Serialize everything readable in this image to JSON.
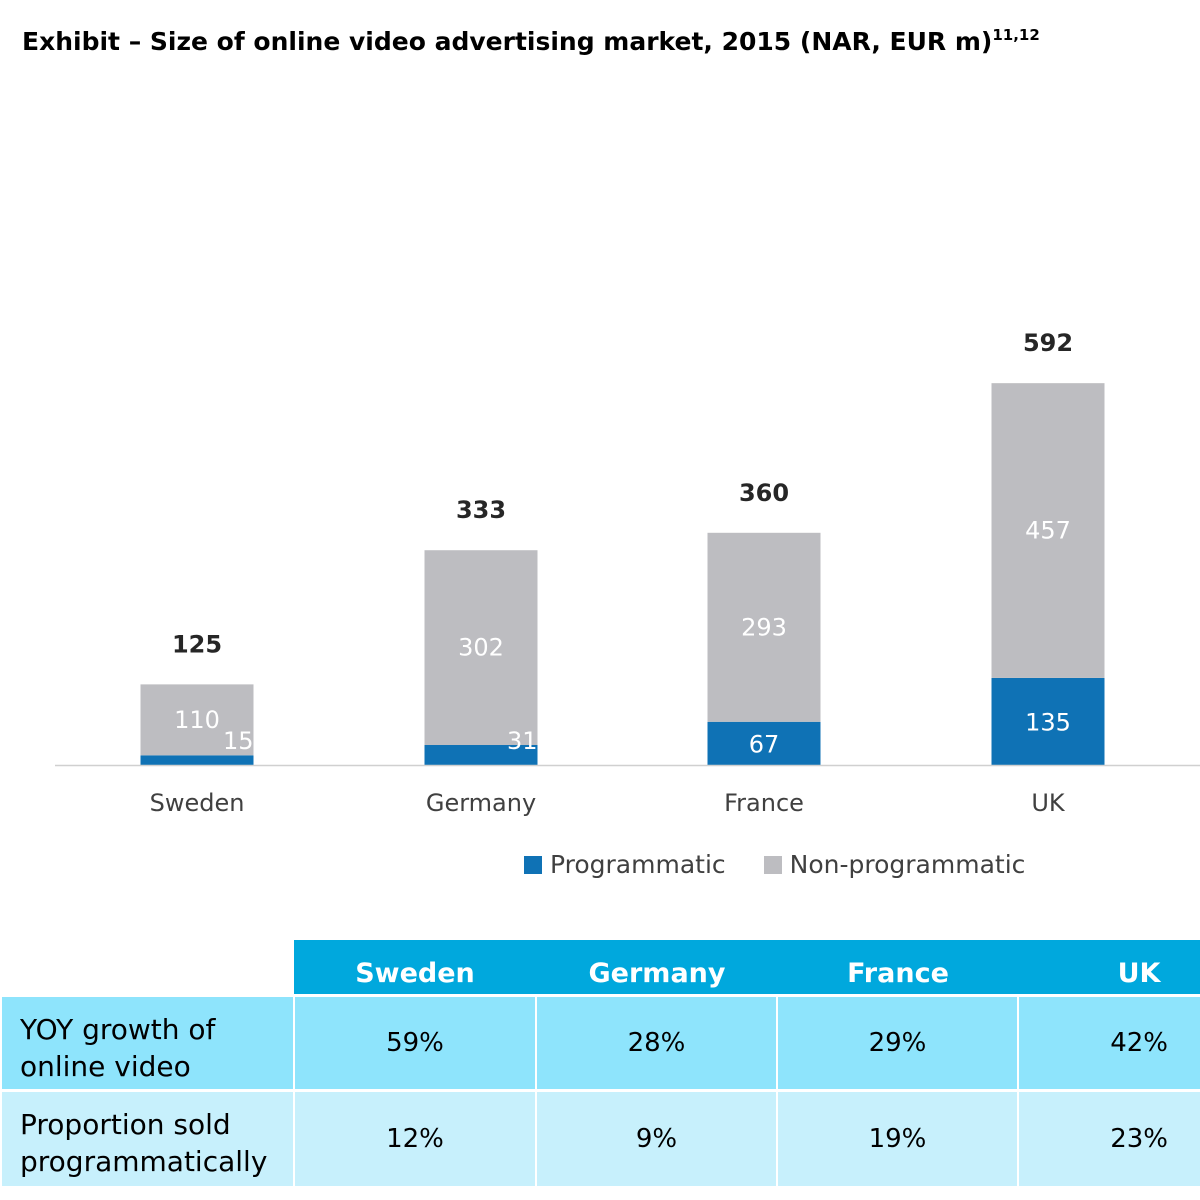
{
  "title": {
    "text": "Exhibit – Size of online video advertising market, 2015 (NAR, EUR m)",
    "superscript": "11,12"
  },
  "chart_data": {
    "type": "bar",
    "stacked": true,
    "categories": [
      "Sweden",
      "Germany",
      "France",
      "UK"
    ],
    "series": [
      {
        "name": "Programmatic",
        "values": [
          15,
          31,
          67,
          135
        ],
        "color": "#0f72b5"
      },
      {
        "name": "Non-programmatic",
        "values": [
          110,
          302,
          293,
          457
        ],
        "color": "#bdbdc1"
      }
    ],
    "totals": [
      125,
      333,
      360,
      592
    ],
    "ylim": [
      0,
      700
    ],
    "grid": false,
    "legend_position": "bottom-right"
  },
  "table": {
    "header_color": "#00a8dd",
    "columns": [
      "Sweden",
      "Germany",
      "France",
      "UK"
    ],
    "rows": [
      {
        "label": "YOY growth of online video",
        "values": [
          "59%",
          "28%",
          "29%",
          "42%"
        ],
        "color": "#8ee4fc"
      },
      {
        "label": "Proportion sold programmatically",
        "values": [
          "12%",
          "9%",
          "19%",
          "23%"
        ],
        "color": "#c7f0fc"
      }
    ]
  }
}
